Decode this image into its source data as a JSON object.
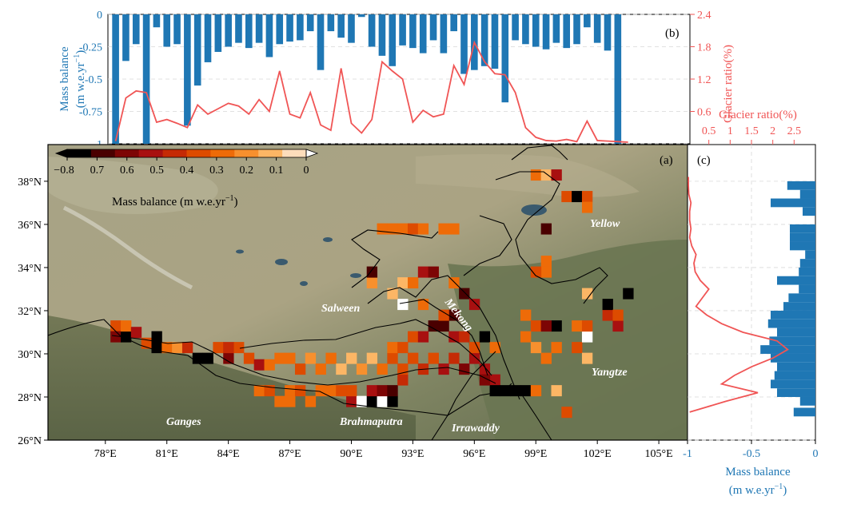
{
  "figure": {
    "panel_a_label": "(a)",
    "panel_b_label": "(b)",
    "panel_c_label": "(c)",
    "colorbar_label_main": "Mass balance (m w.e.yr",
    "colorbar_label_sup": "−1",
    "colorbar_label_end": ")",
    "colors": {
      "bar_blue": "#1f77b4",
      "ratio_red": "#f05555",
      "terrain": "#9a9478",
      "colormap": [
        "#000000",
        "#4a0000",
        "#7d0505",
        "#a81010",
        "#c52a05",
        "#dd4b00",
        "#ee6b08",
        "#f7902e",
        "#fcb665",
        "#fdddbb"
      ]
    }
  },
  "chart_data": [
    {
      "panel": "b",
      "type": "bar",
      "axis": "longitude",
      "ylabel_left_1": "Mass balance",
      "ylabel_left_2": "(m w.e.yr",
      "ylabel_left_sup": "−1",
      "ylabel_left_3": ")",
      "ylabel_right": "Glacier ratio(%)",
      "ylim_left": [
        -1,
        0
      ],
      "ylim_right": [
        0,
        2.4
      ],
      "yticks_left": [
        "0",
        "-0.25",
        "-0.5",
        "-0.75",
        "-1"
      ],
      "yticks_right": [
        "2.4",
        "1.8",
        "1.2",
        "0.6"
      ],
      "x_lon": [
        78.5,
        79,
        79.5,
        80,
        80.5,
        81,
        81.5,
        82,
        82.5,
        83,
        83.5,
        84,
        84.5,
        85,
        85.5,
        86,
        86.5,
        87,
        87.5,
        88,
        88.5,
        89,
        89.5,
        90,
        90.5,
        91,
        91.5,
        92,
        92.5,
        93,
        93.5,
        94,
        94.5,
        95,
        95.5,
        96,
        96.5,
        97,
        97.5,
        98,
        98.5,
        99,
        99.5,
        100,
        100.5,
        101,
        101.5,
        102,
        102.5,
        103,
        103.5
      ],
      "series": [
        {
          "values": [
            -1.0,
            -0.36,
            -0.23,
            -1.0,
            -0.1,
            -0.25,
            -0.23,
            -0.86,
            -0.55,
            -0.37,
            -0.29,
            -0.25,
            -0.22,
            -0.26,
            -0.22,
            -0.33,
            -0.23,
            -0.21,
            -0.2,
            -0.13,
            -0.43,
            -0.13,
            -0.18,
            -0.22,
            -0.02,
            -0.25,
            -0.32,
            -0.4,
            -0.24,
            -0.26,
            -0.3,
            -0.2,
            -0.3,
            -0.13,
            -0.46,
            -0.43,
            -0.4,
            -0.42,
            -0.68,
            -0.2,
            -0.23,
            -0.25,
            -0.27,
            -0.22,
            -0.26,
            -0.23,
            -0.1,
            -0.22,
            -0.28,
            -1.0,
            0
          ]
        },
        {
          "values": [
            0.05,
            0.85,
            0.98,
            0.95,
            0.4,
            0.45,
            0.38,
            0.3,
            0.72,
            0.55,
            0.65,
            0.75,
            0.7,
            0.55,
            0.82,
            0.6,
            1.35,
            0.55,
            0.48,
            0.95,
            0.35,
            0.25,
            1.4,
            0.38,
            0.2,
            0.45,
            1.52,
            1.35,
            1.2,
            0.4,
            0.62,
            0.5,
            0.55,
            1.45,
            1.1,
            1.88,
            1.52,
            1.3,
            1.28,
            0.95,
            0.3,
            0.12,
            0.06,
            0.05,
            0.08,
            0.04,
            0.42,
            0.06,
            0.05,
            0.04,
            0.03
          ]
        }
      ]
    },
    {
      "panel": "c",
      "type": "bar",
      "orientation": "horizontal",
      "axis": "latitude",
      "xlabel_1": "Mass balance",
      "xlabel_2": "(m w.e.yr",
      "xlabel_sup": "−1",
      "xlabel_3": ")",
      "xlabel_top": "Glacier ratio(%)",
      "xlim_bottom": [
        -1,
        0
      ],
      "xlim_top": [
        0,
        3
      ],
      "xticks_bottom": [
        "-1",
        "-0.5",
        "0"
      ],
      "xticks_top": [
        "0.5",
        "1",
        "1.5",
        "2",
        "2.5"
      ],
      "y_lat": [
        27.3,
        27.8,
        28.2,
        28.6,
        29.0,
        29.4,
        29.8,
        30.2,
        30.6,
        31.0,
        31.4,
        31.8,
        32.2,
        32.6,
        33.0,
        33.4,
        33.8,
        34.2,
        34.6,
        35.0,
        35.4,
        35.8,
        36.2,
        36.6,
        37.0,
        37.4,
        37.8,
        38.2
      ],
      "series": [
        {
          "values": [
            -0.17,
            -0.12,
            -0.3,
            -0.35,
            -0.32,
            -0.3,
            -0.35,
            -0.43,
            -0.36,
            -0.3,
            -0.37,
            -0.35,
            -0.25,
            -0.21,
            -0.13,
            -0.3,
            -0.13,
            -0.12,
            -0.08,
            -0.2,
            -0.2,
            -0.2,
            0,
            -0.1,
            -0.35,
            -0.12,
            -0.22,
            0
          ]
        },
        {
          "values": [
            0.05,
            0.9,
            1.65,
            0.8,
            1.1,
            1.5,
            2.0,
            2.35,
            2.1,
            1.3,
            0.8,
            0.45,
            0.2,
            0.35,
            0.5,
            0.3,
            0.18,
            0.15,
            0.2,
            0.1,
            0.05,
            0.08,
            0.05,
            0.05,
            0.08,
            0.03,
            0.02,
            0.02
          ]
        }
      ]
    },
    {
      "panel": "a",
      "type": "heatmap",
      "xticks": [
        "78°E",
        "81°E",
        "84°E",
        "87°E",
        "90°E",
        "93°E",
        "96°E",
        "99°E",
        "102°E",
        "105°E"
      ],
      "yticks": [
        "38°N",
        "36°N",
        "34°N",
        "32°N",
        "30°N",
        "28°N",
        "26°N"
      ],
      "colorbar_ticks": [
        "0.8",
        "0.7",
        "0.6",
        "0.5",
        "0.4",
        "0.3",
        "0.2",
        "0.1",
        "0"
      ],
      "colorbar_first_sign": "−",
      "river_labels": [
        "Yellow",
        "Salween",
        "Mekong",
        "Yangtze",
        "Ganges",
        "Brahmaputra",
        "Irrawaddy"
      ],
      "cells": [
        {
          "lon": 78.5,
          "lat": 31.3,
          "v": -0.35
        },
        {
          "lon": 78.5,
          "lat": 30.8,
          "v": -0.62
        },
        {
          "lon": 79,
          "lat": 30.8,
          "v": -0.9
        },
        {
          "lon": 79,
          "lat": 31.3,
          "v": -0.3
        },
        {
          "lon": 79.5,
          "lat": 31.0,
          "v": -0.55
        },
        {
          "lon": 80,
          "lat": 30.5,
          "v": -0.35
        },
        {
          "lon": 80.5,
          "lat": 30.8,
          "v": -0.9
        },
        {
          "lon": 80.5,
          "lat": 30.3,
          "v": -0.8
        },
        {
          "lon": 81,
          "lat": 30.3,
          "v": -0.3
        },
        {
          "lon": 81.5,
          "lat": 30.3,
          "v": -0.2
        },
        {
          "lon": 82,
          "lat": 30.3,
          "v": -0.45
        },
        {
          "lon": 82.5,
          "lat": 29.8,
          "v": -0.85
        },
        {
          "lon": 83,
          "lat": 29.8,
          "v": -0.9
        },
        {
          "lon": 83.5,
          "lat": 30.3,
          "v": -0.4
        },
        {
          "lon": 84,
          "lat": 29.8,
          "v": -0.6
        },
        {
          "lon": 84.5,
          "lat": 30.3,
          "v": -0.35
        },
        {
          "lon": 85,
          "lat": 29.8,
          "v": -0.4
        },
        {
          "lon": 85.5,
          "lat": 29.5,
          "v": -0.55
        },
        {
          "lon": 86,
          "lat": 29.5,
          "v": -0.3
        },
        {
          "lon": 86.5,
          "lat": 29.8,
          "v": -0.25
        },
        {
          "lon": 85.5,
          "lat": 28.3,
          "v": -0.3
        },
        {
          "lon": 86,
          "lat": 28.3,
          "v": -0.35
        },
        {
          "lon": 86.5,
          "lat": 27.8,
          "v": -0.3
        },
        {
          "lon": 87,
          "lat": 28.3,
          "v": -0.25
        },
        {
          "lon": 87,
          "lat": 27.8,
          "v": -0.3
        },
        {
          "lon": 87.5,
          "lat": 28.3,
          "v": -0.35
        },
        {
          "lon": 88,
          "lat": 27.8,
          "v": -0.3
        },
        {
          "lon": 88.5,
          "lat": 28.3,
          "v": -0.25
        },
        {
          "lon": 89,
          "lat": 28.3,
          "v": -0.3
        },
        {
          "lon": 89.5,
          "lat": 28.3,
          "v": -0.35
        },
        {
          "lon": 90,
          "lat": 27.8,
          "v": -0.5
        },
        {
          "lon": 90.5,
          "lat": 27.8,
          "v": 0
        },
        {
          "lon": 91,
          "lat": 27.8,
          "v": -0.75
        },
        {
          "lon": 91.5,
          "lat": 27.8,
          "v": 0
        },
        {
          "lon": 92,
          "lat": 27.8,
          "v": -0.8
        },
        {
          "lon": 90,
          "lat": 28.3,
          "v": -0.4
        },
        {
          "lon": 91,
          "lat": 28.3,
          "v": -0.55
        },
        {
          "lon": 91.5,
          "lat": 28.3,
          "v": -0.6
        },
        {
          "lon": 92,
          "lat": 28.3,
          "v": -0.65
        },
        {
          "lon": 92.5,
          "lat": 28.8,
          "v": -0.45
        },
        {
          "lon": 87,
          "lat": 29.8,
          "v": -0.3
        },
        {
          "lon": 87.5,
          "lat": 29.3,
          "v": -0.35
        },
        {
          "lon": 88,
          "lat": 29.8,
          "v": -0.2
        },
        {
          "lon": 88.5,
          "lat": 29.3,
          "v": -0.3
        },
        {
          "lon": 89,
          "lat": 29.8,
          "v": -0.25
        },
        {
          "lon": 89.5,
          "lat": 29.3,
          "v": -0.15
        },
        {
          "lon": 90,
          "lat": 29.8,
          "v": -0.1
        },
        {
          "lon": 90.5,
          "lat": 29.3,
          "v": -0.2
        },
        {
          "lon": 91,
          "lat": 29.8,
          "v": -0.15
        },
        {
          "lon": 91.5,
          "lat": 29.3,
          "v": -0.3
        },
        {
          "lon": 92,
          "lat": 29.8,
          "v": -0.35
        },
        {
          "lon": 92.5,
          "lat": 29.3,
          "v": -0.4
        },
        {
          "lon": 93,
          "lat": 29.8,
          "v": -0.35
        },
        {
          "lon": 93.5,
          "lat": 29.3,
          "v": -0.45
        },
        {
          "lon": 94,
          "lat": 29.8,
          "v": -0.4
        },
        {
          "lon": 94.5,
          "lat": 29.3,
          "v": -0.5
        },
        {
          "lon": 95,
          "lat": 29.8,
          "v": -0.45
        },
        {
          "lon": 95.5,
          "lat": 29.3,
          "v": -0.6
        },
        {
          "lon": 96,
          "lat": 29.8,
          "v": -0.55
        },
        {
          "lon": 96.5,
          "lat": 29.3,
          "v": -0.5
        },
        {
          "lon": 97,
          "lat": 28.8,
          "v": -0.55
        },
        {
          "lon": 97,
          "lat": 28.3,
          "v": -0.9
        },
        {
          "lon": 97.5,
          "lat": 28.3,
          "v": -0.95
        },
        {
          "lon": 98,
          "lat": 28.3,
          "v": -0.9
        },
        {
          "lon": 98.5,
          "lat": 28.3,
          "v": -0.8
        },
        {
          "lon": 96.5,
          "lat": 28.8,
          "v": -0.6
        },
        {
          "lon": 99,
          "lat": 28.3,
          "v": -0.3
        },
        {
          "lon": 100,
          "lat": 28.3,
          "v": -0.1
        },
        {
          "lon": 92,
          "lat": 30.3,
          "v": -0.3
        },
        {
          "lon": 92.5,
          "lat": 30.3,
          "v": -0.35
        },
        {
          "lon": 93,
          "lat": 30.8,
          "v": -0.4
        },
        {
          "lon": 93.5,
          "lat": 30.8,
          "v": -0.5
        },
        {
          "lon": 94,
          "lat": 31.3,
          "v": -0.65
        },
        {
          "lon": 94.5,
          "lat": 31.3,
          "v": -0.7
        },
        {
          "lon": 95,
          "lat": 30.8,
          "v": -0.55
        },
        {
          "lon": 95,
          "lat": 31.8,
          "v": -0.7
        },
        {
          "lon": 95.5,
          "lat": 30.8,
          "v": -0.45
        },
        {
          "lon": 96,
          "lat": 30.3,
          "v": -0.4
        },
        {
          "lon": 96.5,
          "lat": 30.8,
          "v": -0.9
        },
        {
          "lon": 97,
          "lat": 30.3,
          "v": -0.3
        },
        {
          "lon": 94.5,
          "lat": 31.8,
          "v": -0.35
        },
        {
          "lon": 93.5,
          "lat": 32.3,
          "v": -0.3
        },
        {
          "lon": 92.5,
          "lat": 32.3,
          "v": 0
        },
        {
          "lon": 92,
          "lat": 32.8,
          "v": -0.15
        },
        {
          "lon": 92.5,
          "lat": 33.3,
          "v": -0.1
        },
        {
          "lon": 93,
          "lat": 33.3,
          "v": -0.25
        },
        {
          "lon": 93.5,
          "lat": 33.8,
          "v": -0.55
        },
        {
          "lon": 94,
          "lat": 33.8,
          "v": -0.6
        },
        {
          "lon": 91,
          "lat": 33.3,
          "v": -0.2
        },
        {
          "lon": 91,
          "lat": 33.8,
          "v": -0.65
        },
        {
          "lon": 91.5,
          "lat": 35.8,
          "v": -0.3
        },
        {
          "lon": 92,
          "lat": 35.8,
          "v": -0.25
        },
        {
          "lon": 92.5,
          "lat": 35.8,
          "v": -0.3
        },
        {
          "lon": 93,
          "lat": 35.8,
          "v": -0.35
        },
        {
          "lon": 93.5,
          "lat": 35.8,
          "v": -0.3
        },
        {
          "lon": 94.5,
          "lat": 35.8,
          "v": -0.3
        },
        {
          "lon": 95,
          "lat": 35.8,
          "v": -0.25
        },
        {
          "lon": 95,
          "lat": 33.3,
          "v": -0.3
        },
        {
          "lon": 95.5,
          "lat": 32.8,
          "v": -0.65
        },
        {
          "lon": 96,
          "lat": 32.3,
          "v": -0.5
        },
        {
          "lon": 98.5,
          "lat": 31.8,
          "v": -0.3
        },
        {
          "lon": 99,
          "lat": 31.3,
          "v": -0.35
        },
        {
          "lon": 98.5,
          "lat": 30.8,
          "v": -0.25
        },
        {
          "lon": 99,
          "lat": 30.3,
          "v": -0.2
        },
        {
          "lon": 99.5,
          "lat": 29.8,
          "v": -0.3
        },
        {
          "lon": 100,
          "lat": 31.3,
          "v": -0.75
        },
        {
          "lon": 99.5,
          "lat": 31.3,
          "v": -0.6
        },
        {
          "lon": 100,
          "lat": 30.3,
          "v": -0.25
        },
        {
          "lon": 101,
          "lat": 30.3,
          "v": -0.4
        },
        {
          "lon": 101.5,
          "lat": 30.8,
          "v": 0
        },
        {
          "lon": 101.5,
          "lat": 29.8,
          "v": -0.15
        },
        {
          "lon": 101,
          "lat": 31.3,
          "v": -0.3
        },
        {
          "lon": 101.5,
          "lat": 31.3,
          "v": -0.35
        },
        {
          "lon": 102.5,
          "lat": 31.8,
          "v": -0.45
        },
        {
          "lon": 102.5,
          "lat": 32.3,
          "v": -0.75
        },
        {
          "lon": 103,
          "lat": 31.3,
          "v": -0.5
        },
        {
          "lon": 103,
          "lat": 31.8,
          "v": -0.35
        },
        {
          "lon": 103.5,
          "lat": 32.8,
          "v": -0.95
        },
        {
          "lon": 99.5,
          "lat": 34.3,
          "v": -0.25
        },
        {
          "lon": 99.5,
          "lat": 33.8,
          "v": -0.3
        },
        {
          "lon": 99,
          "lat": 33.8,
          "v": -0.35
        },
        {
          "lon": 99.5,
          "lat": 35.8,
          "v": -0.7
        },
        {
          "lon": 101.5,
          "lat": 32.8,
          "v": -0.1
        },
        {
          "lon": 100.5,
          "lat": 37.3,
          "v": -0.35
        },
        {
          "lon": 101,
          "lat": 37.3,
          "v": -0.8
        },
        {
          "lon": 101.5,
          "lat": 37.3,
          "v": -0.4
        },
        {
          "lon": 99,
          "lat": 38.3,
          "v": -0.3
        },
        {
          "lon": 99.5,
          "lat": 38.3,
          "v": -0.15
        },
        {
          "lon": 100,
          "lat": 38.3,
          "v": -0.5
        },
        {
          "lon": 101.5,
          "lat": 36.8,
          "v": -0.3
        },
        {
          "lon": 100.5,
          "lat": 27.3,
          "v": -0.35
        },
        {
          "lon": 84,
          "lat": 30.3,
          "v": -0.45
        }
      ]
    }
  ]
}
